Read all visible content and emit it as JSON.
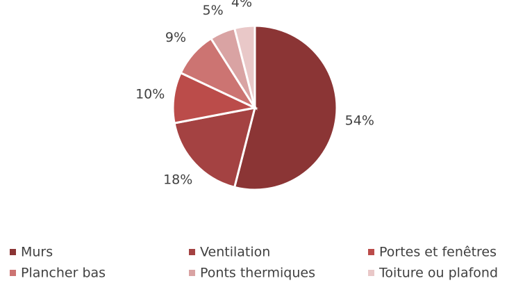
{
  "chart_data": {
    "type": "pie",
    "categories": [
      "Murs",
      "Ventilation",
      "Portes et fenêtres",
      "Plancher bas",
      "Ponts thermiques",
      "Toiture ou plafond"
    ],
    "values": [
      54,
      18,
      10,
      9,
      5,
      4
    ],
    "value_labels": [
      "54%",
      "18%",
      "10%",
      "9%",
      "5%",
      "4%"
    ],
    "colors": [
      "#8b3535",
      "#a44242",
      "#bb4c4a",
      "#cc7472",
      "#d9a3a3",
      "#e9c8c8"
    ]
  }
}
